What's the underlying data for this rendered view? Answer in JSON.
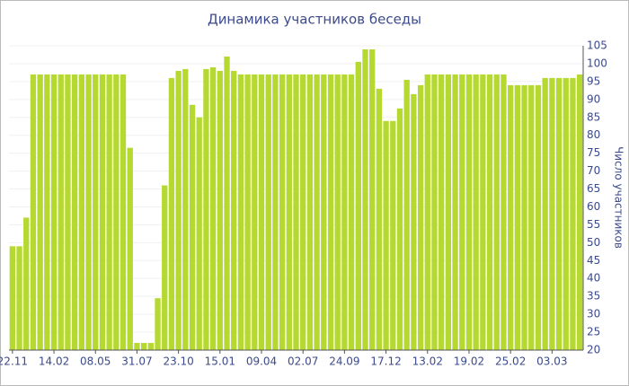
{
  "chart_data": {
    "type": "bar",
    "title": "Динамика участников беседы",
    "y_label": "Число участников",
    "color": "#b5d930",
    "categories": [
      "22.11",
      null,
      null,
      null,
      null,
      null,
      "14.02",
      null,
      null,
      null,
      null,
      null,
      "08.05",
      null,
      null,
      null,
      null,
      null,
      "31.07",
      null,
      null,
      null,
      null,
      null,
      "23.10",
      null,
      null,
      null,
      null,
      null,
      "15.01",
      null,
      null,
      null,
      null,
      null,
      "09.04",
      null,
      null,
      null,
      null,
      null,
      "02.07",
      null,
      null,
      null,
      null,
      null,
      "24.09",
      null,
      null,
      null,
      null,
      null,
      "17.12",
      null,
      null,
      null,
      null,
      null,
      "13.02",
      null,
      null,
      null,
      null,
      null,
      "19.02",
      null,
      null,
      null,
      null,
      null,
      "25.02",
      null,
      null,
      null,
      null,
      null,
      "03.03",
      null,
      null,
      null,
      null
    ],
    "values": [
      49,
      49,
      57,
      97,
      97,
      97,
      97,
      97,
      97,
      97,
      97,
      97,
      97,
      97,
      97,
      97,
      97,
      76.5,
      22,
      22,
      22,
      34.5,
      66,
      96,
      98,
      98.5,
      88.5,
      85,
      98.5,
      99,
      98,
      102,
      98,
      97,
      97,
      97,
      97,
      97,
      97,
      97,
      97,
      97,
      97,
      97,
      97,
      97,
      97,
      97,
      97,
      97,
      100.5,
      104,
      104,
      93,
      84,
      84,
      87.5,
      95.5,
      91.5,
      94,
      97,
      97,
      97,
      97,
      97,
      97,
      97,
      97,
      97,
      97,
      97,
      97,
      94,
      94,
      94,
      94,
      94,
      96,
      96,
      96,
      96,
      96,
      97
    ],
    "ylim": [
      20,
      105
    ],
    "yticks": [
      20,
      25,
      30,
      35,
      40,
      45,
      50,
      55,
      60,
      65,
      70,
      75,
      80,
      85,
      90,
      95,
      100,
      105
    ],
    "grid": true
  }
}
